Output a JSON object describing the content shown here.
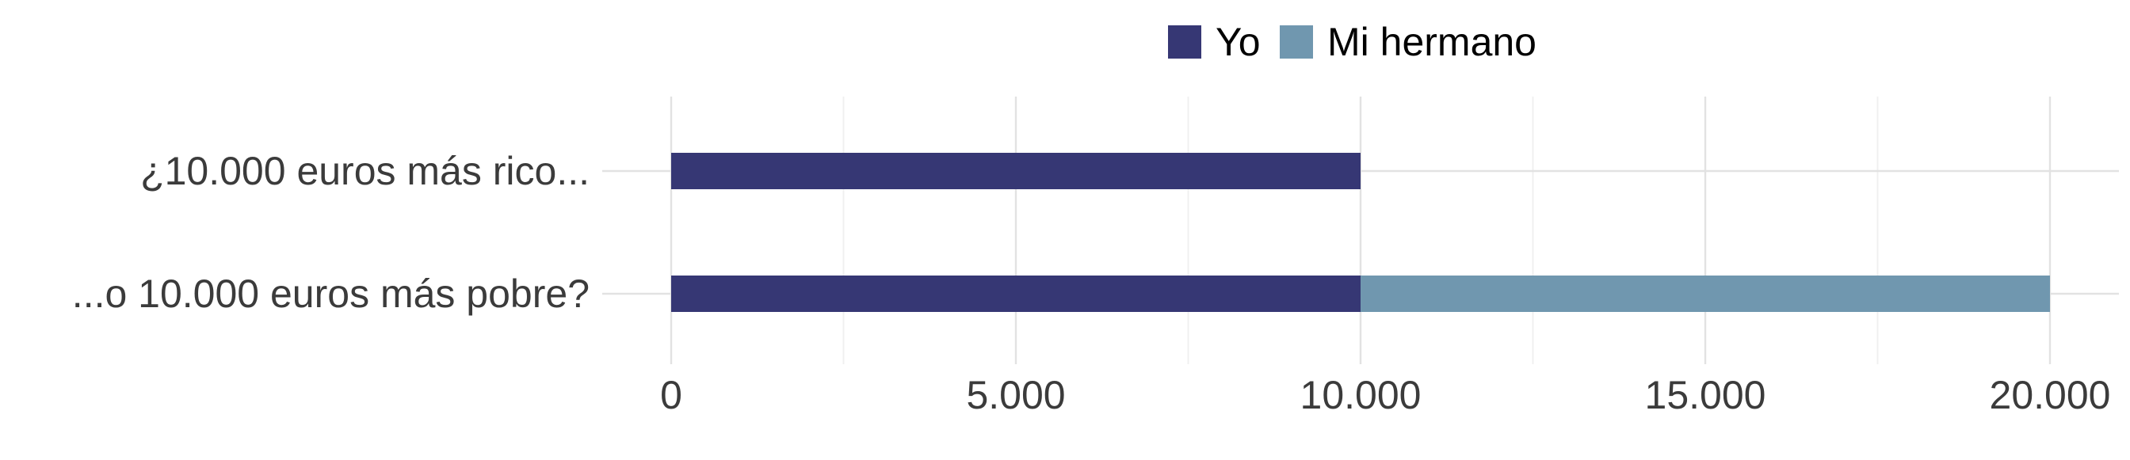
{
  "chart_data": {
    "type": "bar",
    "orientation": "horizontal",
    "stacked": true,
    "categories": [
      "¿10.000 euros más rico...",
      "...o 10.000 euros más pobre?"
    ],
    "series": [
      {
        "name": "Yo",
        "values": [
          10000,
          10000
        ],
        "color": "#363774"
      },
      {
        "name": "Mi hermano",
        "values": [
          0,
          10000
        ],
        "color": "#7097af"
      }
    ],
    "x_ticks": [
      0,
      5000,
      10000,
      15000,
      20000
    ],
    "x_tick_labels": [
      "0",
      "5.000",
      "10.000",
      "15.000",
      "20.000"
    ],
    "xlim": [
      -1000,
      21000
    ],
    "xlabel": "",
    "ylabel": "",
    "title": "",
    "grid": true,
    "legend_position": "top-center"
  }
}
